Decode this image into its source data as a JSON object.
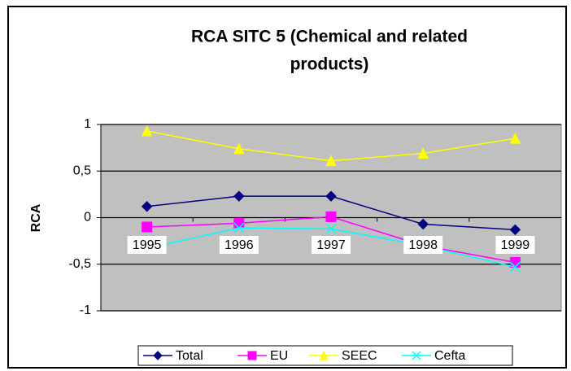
{
  "chart_data": {
    "type": "line",
    "title": [
      "RCA SITC 5 (Chemical and related",
      "products)"
    ],
    "y_label": "RCA",
    "categories": [
      "1995",
      "1996",
      "1997",
      "1998",
      "1999"
    ],
    "series": [
      {
        "name": "Total",
        "color": "#000080",
        "marker": "diamond",
        "values": [
          0.12,
          0.23,
          0.23,
          -0.07,
          -0.13
        ]
      },
      {
        "name": "EU",
        "color": "#ff00ff",
        "marker": "square",
        "values": [
          -0.1,
          -0.06,
          0.01,
          -0.3,
          -0.48
        ]
      },
      {
        "name": "SEEC",
        "color": "#ffff00",
        "marker": "triangle",
        "values": [
          0.93,
          0.74,
          0.61,
          0.69,
          0.85
        ]
      },
      {
        "name": "Cefta",
        "color": "#00ffff",
        "marker": "x",
        "values": [
          -0.33,
          -0.11,
          -0.12,
          -0.3,
          -0.53
        ]
      }
    ],
    "ylim": [
      -1,
      1
    ],
    "yticks": [
      -1,
      {
        "value": -0.5,
        "label": "-0,5"
      },
      0,
      {
        "value": 0.5,
        "label": "0,5"
      },
      1
    ],
    "grid": true,
    "legend": "bottom"
  }
}
